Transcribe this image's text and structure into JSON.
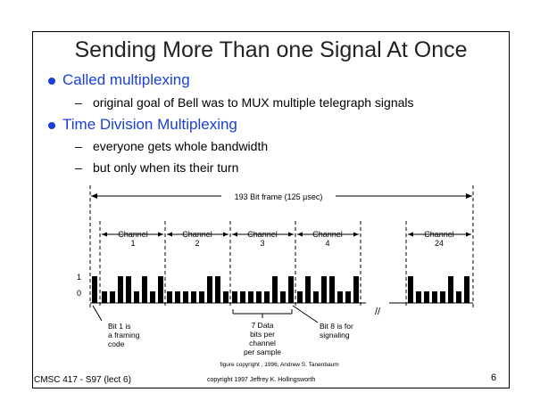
{
  "slide": {
    "title": "Sending More Than one Signal At Once",
    "bullets": [
      {
        "text": "Called multiplexing",
        "subs": [
          "original goal of Bell was to MUX multiple telegraph signals"
        ]
      },
      {
        "text": "Time Division Multiplexing",
        "subs": [
          "everyone gets whole bandwidth",
          "but only when its their turn"
        ]
      }
    ],
    "course": "CMSC 417 - S97  (lect 6)",
    "copyright": "copyright 1997  Jeffrey K. Hollingsworth",
    "page_number": "6"
  },
  "diagram": {
    "frame_label": "193 Bit frame  (125 µsec)",
    "channels": [
      {
        "word": "Channel",
        "num": "1"
      },
      {
        "word": "Channel",
        "num": "2"
      },
      {
        "word": "Channel",
        "num": "3"
      },
      {
        "word": "Channel",
        "num": "4"
      },
      {
        "word": "Channel",
        "num": "24"
      }
    ],
    "level_high": "1",
    "level_low": "0",
    "gap_mark": "//",
    "notes": {
      "bit1": [
        "Bit 1 is",
        "a framing",
        "code"
      ],
      "data": [
        "7 Data",
        "bits per",
        "channel",
        "per sample"
      ],
      "bit8": [
        "Bit 8 is for",
        "signaling"
      ]
    },
    "figure_credit": "figure copyright , 1996, Andrew S. Tanenbaum",
    "bits": {
      "framing": 1,
      "ch1": [
        0,
        0,
        1,
        1,
        0,
        1,
        0,
        1
      ],
      "ch2": [
        0,
        0,
        0,
        0,
        0,
        1,
        1,
        0
      ],
      "ch3": [
        0,
        0,
        0,
        0,
        0,
        1,
        0,
        1
      ],
      "ch4": [
        0,
        1,
        0,
        1,
        1,
        0,
        0,
        1
      ],
      "ch24": [
        1,
        0,
        0,
        0,
        0,
        1,
        0,
        1
      ]
    }
  }
}
